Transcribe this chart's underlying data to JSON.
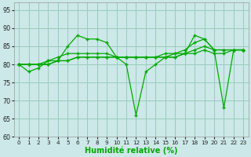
{
  "xlabel": "Humidité relative (%)",
  "xlim": [
    0,
    23
  ],
  "ylim": [
    60,
    97
  ],
  "yticks": [
    60,
    65,
    70,
    75,
    80,
    85,
    90,
    95
  ],
  "xticks": [
    0,
    1,
    2,
    3,
    4,
    5,
    6,
    7,
    8,
    9,
    10,
    11,
    12,
    13,
    14,
    15,
    16,
    17,
    18,
    19,
    20,
    21,
    22,
    23
  ],
  "background_color": "#cce8e8",
  "grid_color": "#99ccbb",
  "line_color": "#00aa00",
  "series": [
    [
      80,
      78,
      79,
      81,
      81,
      85,
      88,
      87,
      87,
      86,
      82,
      80,
      66,
      78,
      80,
      82,
      82,
      83,
      88,
      87,
      84,
      68,
      84,
      84
    ],
    [
      80,
      80,
      80,
      81,
      82,
      83,
      83,
      83,
      83,
      83,
      82,
      82,
      82,
      82,
      82,
      83,
      83,
      84,
      86,
      87,
      84,
      84,
      84,
      84
    ],
    [
      80,
      80,
      80,
      80,
      81,
      81,
      82,
      82,
      82,
      82,
      82,
      82,
      82,
      82,
      82,
      82,
      83,
      83,
      84,
      85,
      84,
      84,
      84,
      84
    ],
    [
      80,
      80,
      80,
      80,
      81,
      81,
      82,
      82,
      82,
      82,
      82,
      82,
      82,
      82,
      82,
      82,
      82,
      83,
      83,
      84,
      83,
      83,
      84,
      84
    ]
  ]
}
